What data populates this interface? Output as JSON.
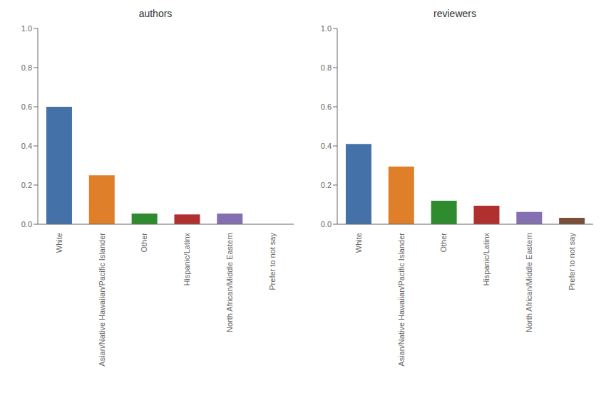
{
  "chart_data": [
    {
      "type": "bar",
      "title": "authors",
      "categories": [
        "White",
        "Asian/Native Hawaiian/Pacific Islander",
        "Other",
        "Hispanic/Latinx",
        "North African/Middle Eastern",
        "Prefer to not say"
      ],
      "values": [
        0.6,
        0.25,
        0.055,
        0.05,
        0.055,
        0.0
      ],
      "colors": [
        "#4472a8",
        "#e07f29",
        "#2e8b2e",
        "#b03030",
        "#8470b0",
        "#7a4f3a"
      ],
      "ylim": [
        0.0,
        1.0
      ],
      "yticks": [
        {
          "value": 0.0,
          "label": "0.0"
        },
        0.2,
        0.4,
        0.6,
        0.8,
        {
          "value": 1.0,
          "label": "1.0"
        }
      ],
      "grid": false
    },
    {
      "type": "bar",
      "title": "reviewers",
      "categories": [
        "White",
        "Asian/Native Hawaiian/Pacific Islander",
        "Other",
        "Hispanic/Latinx",
        "North African/Middle Eastern",
        "Prefer to not say"
      ],
      "values": [
        0.41,
        0.295,
        0.12,
        0.095,
        0.063,
        0.033
      ],
      "colors": [
        "#4472a8",
        "#e07f29",
        "#2e8b2e",
        "#b03030",
        "#8470b0",
        "#7a4f3a"
      ],
      "ylim": [
        0.0,
        1.0
      ],
      "yticks": [
        {
          "value": 0.0,
          "label": "0.0"
        },
        0.2,
        0.4,
        0.6,
        0.8,
        {
          "value": 1.0,
          "label": "1.0"
        }
      ],
      "grid": false
    }
  ]
}
